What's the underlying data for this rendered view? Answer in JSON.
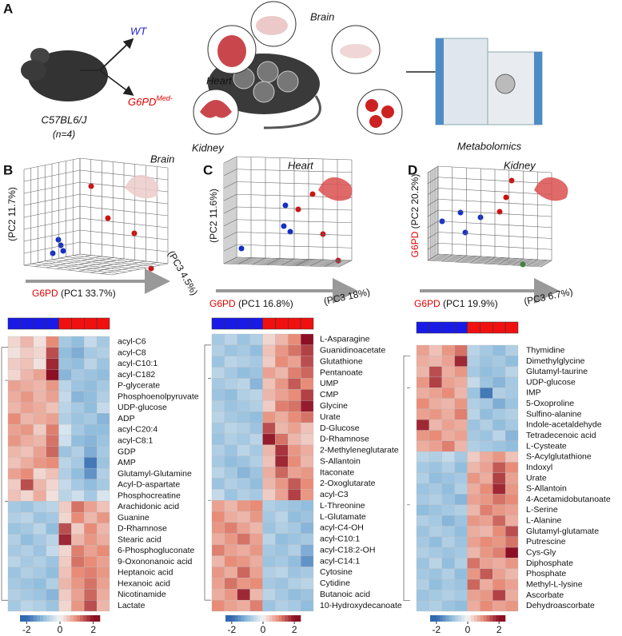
{
  "panel_a": {
    "label": "A",
    "wt": "WT",
    "g6pd": "G6PD",
    "g6pd_sup": "Med-",
    "strain": "C57BL6/J",
    "n": "(n=4)",
    "organs": [
      "Brain",
      "Heart",
      "Kidney"
    ],
    "method": "Metabolomics"
  },
  "pca": [
    {
      "label": "B",
      "organ": "Brain",
      "y_label": "(PC2 11.7%)",
      "x_prefix": "G6PD",
      "x_label": "(PC1 33.7%)",
      "z_label": "(PC3 4.5%)"
    },
    {
      "label": "C",
      "organ": "Heart",
      "y_label": "(PC2 11.6%)",
      "x_prefix": "G6PD",
      "x_label": "(PC1 16.8%)",
      "z_label": "(PC3 18%)"
    },
    {
      "label": "D",
      "organ": "Kidney",
      "y_prefix": "G6PD",
      "y_label": "(PC2 20.2%)",
      "x_prefix": "G6PD",
      "x_label": "(PC1 19.9%)",
      "z_label": "(PC3 6.7%)"
    }
  ],
  "heatmaps": [
    {
      "clim": [
        -2.4,
        2.4
      ],
      "colorbar_ticks": [
        -2,
        0,
        2
      ],
      "rows": [
        "acyl-C6",
        "acyl-C8",
        "acyl-C10:1",
        "acyl-C182",
        "P-glycerate",
        "Phosphoenolpyruvate",
        "UDP-glucose",
        "ADP",
        "acyl-C20:4",
        "acyl-C8:1",
        "GDP",
        "AMP",
        "Glutamyl-Glutamine",
        "Acyl-D-aspartate",
        "Phosphocreatine",
        "Arachidonic acid",
        "Guanine",
        "D-Rhamnose",
        "Stearic acid",
        "6-Phosphogluconate",
        "9-Oxononanoic acid",
        "Heptanoic acid",
        "Hexanoic acid",
        "Nicotinamide",
        "Lactate"
      ],
      "values": [
        [
          0.3,
          0.6,
          0.2,
          1.0,
          -0.8,
          -1.0,
          -0.5,
          -0.8
        ],
        [
          0.2,
          0.4,
          0.3,
          1.5,
          -1.0,
          -1.2,
          -0.8,
          -0.7
        ],
        [
          0.4,
          0.5,
          0.2,
          1.8,
          -0.9,
          -1.0,
          -0.6,
          -0.9
        ],
        [
          0.3,
          0.6,
          0.8,
          2.0,
          -1.1,
          -0.8,
          -0.9,
          -1.0
        ],
        [
          0.8,
          0.7,
          0.6,
          0.9,
          -0.6,
          -0.9,
          -1.0,
          -0.8
        ],
        [
          0.7,
          0.9,
          0.6,
          0.8,
          -0.5,
          -1.1,
          -1.0,
          -0.7
        ],
        [
          0.6,
          0.8,
          0.7,
          0.5,
          -0.6,
          -0.8,
          -1.0,
          -0.5
        ],
        [
          1.0,
          0.6,
          0.7,
          0.8,
          -0.7,
          -0.9,
          -0.8,
          -1.1
        ],
        [
          0.8,
          0.9,
          0.4,
          1.1,
          -0.3,
          -0.8,
          -1.0,
          -1.0
        ],
        [
          0.9,
          0.7,
          0.6,
          1.2,
          -0.4,
          -1.0,
          -1.1,
          -0.9
        ],
        [
          0.6,
          0.5,
          0.8,
          1.3,
          -0.9,
          -0.7,
          -1.2,
          -0.8
        ],
        [
          0.5,
          0.7,
          0.9,
          1.0,
          -0.6,
          -0.8,
          -1.8,
          -0.9
        ],
        [
          0.8,
          1.0,
          0.3,
          0.5,
          -0.7,
          -1.0,
          -1.5,
          -0.7
        ],
        [
          0.4,
          1.5,
          0.6,
          0.3,
          -0.5,
          -0.8,
          -1.0,
          -0.8
        ],
        [
          0.5,
          0.3,
          0.7,
          0.2,
          -0.6,
          -0.4,
          -0.8,
          -0.3
        ],
        [
          -0.8,
          -0.9,
          -0.7,
          -0.6,
          0.4,
          1.2,
          0.8,
          0.5
        ],
        [
          -0.7,
          -0.6,
          -0.9,
          -0.8,
          0.3,
          1.0,
          0.6,
          0.9
        ],
        [
          -0.9,
          -0.8,
          -0.6,
          -1.0,
          1.5,
          0.4,
          1.0,
          0.6
        ],
        [
          -0.7,
          -1.0,
          -0.8,
          -0.6,
          1.8,
          0.6,
          0.9,
          0.7
        ],
        [
          -0.8,
          -0.7,
          -0.9,
          -0.5,
          0.3,
          1.1,
          0.8,
          1.0
        ],
        [
          -0.6,
          -0.8,
          -0.7,
          -0.9,
          0.4,
          1.2,
          1.0,
          0.8
        ],
        [
          -0.9,
          -0.7,
          -0.8,
          -1.0,
          0.5,
          1.0,
          1.1,
          0.9
        ],
        [
          -0.8,
          -0.9,
          -1.0,
          -0.7,
          0.6,
          0.9,
          1.2,
          0.8
        ],
        [
          -0.7,
          -0.8,
          -0.9,
          -1.1,
          0.4,
          0.8,
          1.3,
          0.7
        ],
        [
          -0.8,
          -0.6,
          -0.7,
          -0.9,
          0.3,
          0.9,
          1.5,
          0.6
        ]
      ]
    },
    {
      "clim": [
        -2.4,
        2.4
      ],
      "colorbar_ticks": [
        -2,
        0,
        2
      ],
      "rows": [
        "L-Asparagine",
        "Guanidinoacetate",
        "Glutathione",
        "Pentanoate",
        "UMP",
        "CMP",
        "Glycine",
        "Urate",
        "D-Glucose",
        "D-Rhamnose",
        "2-Methyleneglutarate",
        "S-Allantoin",
        "Itaconate",
        "2-Oxoglutarate",
        "acyl-C3",
        "L-Threonine",
        "L-Glutamate",
        "acyl-C4-OH",
        "acyl-C10:1",
        "acyl-C18:2-OH",
        "acyl-C14:1",
        "Cytosine",
        "Cytidine",
        "Butanoic acid",
        "10-Hydroxydecanoate"
      ],
      "values": [
        [
          -0.8,
          -0.6,
          -0.9,
          -0.7,
          0.3,
          0.6,
          1.0,
          2.0
        ],
        [
          -0.7,
          -0.9,
          -0.8,
          -1.0,
          0.5,
          0.9,
          1.2,
          1.6
        ],
        [
          -0.9,
          -0.6,
          -0.7,
          -0.8,
          0.4,
          1.0,
          0.8,
          1.5
        ],
        [
          -0.6,
          -0.8,
          -1.0,
          -0.9,
          0.8,
          0.6,
          1.1,
          1.3
        ],
        [
          -0.8,
          -0.7,
          -0.6,
          -1.1,
          0.5,
          0.9,
          1.4,
          1.0
        ],
        [
          -0.9,
          -1.0,
          -0.7,
          -0.6,
          0.6,
          0.8,
          1.0,
          1.6
        ],
        [
          -0.7,
          -0.9,
          -0.8,
          -0.7,
          0.4,
          1.1,
          1.2,
          1.9
        ],
        [
          -0.6,
          -0.8,
          -0.9,
          -1.0,
          0.9,
          0.7,
          1.0,
          1.2
        ],
        [
          -0.8,
          -0.6,
          -0.7,
          -0.9,
          1.5,
          0.6,
          0.8,
          0.5
        ],
        [
          -0.9,
          -0.7,
          -0.8,
          -0.6,
          1.9,
          1.2,
          0.6,
          0.4
        ],
        [
          -0.7,
          -0.9,
          -0.6,
          -0.8,
          0.6,
          1.7,
          0.9,
          0.7
        ],
        [
          -0.8,
          -1.0,
          -0.9,
          -0.7,
          0.5,
          1.8,
          1.0,
          0.6
        ],
        [
          -0.6,
          -0.8,
          -1.1,
          -0.9,
          0.7,
          1.3,
          0.8,
          0.9
        ],
        [
          -0.9,
          -0.7,
          -0.8,
          -1.0,
          0.6,
          0.9,
          1.4,
          1.0
        ],
        [
          -0.5,
          -0.9,
          -0.7,
          -0.8,
          0.4,
          0.8,
          1.6,
          0.9
        ],
        [
          0.8,
          0.6,
          0.9,
          1.0,
          -0.7,
          -0.8,
          -0.9,
          -1.0
        ],
        [
          1.0,
          0.7,
          0.6,
          0.9,
          -0.8,
          -0.6,
          -1.0,
          -0.9
        ],
        [
          0.9,
          1.1,
          0.8,
          0.6,
          -0.9,
          -0.7,
          -0.8,
          -1.1
        ],
        [
          0.7,
          0.9,
          1.2,
          0.8,
          -0.6,
          -1.0,
          -0.9,
          -0.8
        ],
        [
          1.1,
          0.8,
          0.7,
          0.9,
          -0.8,
          -0.9,
          -0.7,
          -1.2
        ],
        [
          0.6,
          1.0,
          0.9,
          0.7,
          -0.9,
          -0.8,
          -1.0,
          -1.5
        ],
        [
          0.9,
          0.7,
          1.3,
          0.8,
          -0.7,
          -0.6,
          -0.9,
          -0.8
        ],
        [
          0.8,
          1.2,
          0.9,
          1.0,
          -0.8,
          -0.9,
          -0.7,
          -0.6
        ],
        [
          0.7,
          0.9,
          1.8,
          0.6,
          -0.6,
          -0.8,
          -1.0,
          -0.9
        ],
        [
          1.0,
          0.8,
          0.7,
          1.1,
          -0.9,
          -0.7,
          -0.8,
          -1.0
        ]
      ]
    },
    {
      "clim": [
        -2.4,
        2.4
      ],
      "colorbar_ticks": [
        -2,
        0,
        2
      ],
      "rows": [
        "Thymidine",
        "Dimethylglycine",
        "Glutamyl-taurine",
        "UDP-glucose",
        "IMP",
        "5-Oxoproline",
        "Sulfino-alanine",
        "Indole-acetaldehyde",
        "Tetradecenoic acid",
        "L-Cysteate",
        "S-Acylglutathione",
        "Indoxyl",
        "Urate",
        "S-Allantoin",
        "4-Acetamidobutanoate",
        "L-Serine",
        "L-Alanine",
        "Glutamyl-glutamate",
        "Putrescine",
        "Cys-Gly",
        "Diphosphate",
        "Phosphate",
        "Methyl-L-lysine",
        "Ascorbate",
        "Dehydroascorbate"
      ],
      "values": [
        [
          0.8,
          0.5,
          0.9,
          1.2,
          -0.6,
          -0.8,
          -1.0,
          -0.7
        ],
        [
          0.7,
          0.6,
          0.8,
          1.8,
          -0.7,
          -0.9,
          -0.8,
          -1.0
        ],
        [
          0.6,
          1.5,
          0.7,
          0.9,
          -0.8,
          -1.0,
          -0.9,
          -0.6
        ],
        [
          0.9,
          1.6,
          0.8,
          0.7,
          -0.5,
          -0.9,
          -1.1,
          -0.8
        ],
        [
          0.7,
          0.8,
          1.0,
          0.6,
          -0.9,
          -1.8,
          -0.7,
          -0.8
        ],
        [
          1.0,
          0.7,
          0.6,
          0.9,
          -0.7,
          -0.8,
          -1.2,
          -0.9
        ],
        [
          0.8,
          0.9,
          0.7,
          1.1,
          -0.6,
          -1.0,
          -0.8,
          -0.7
        ],
        [
          1.8,
          0.6,
          0.8,
          0.7,
          -0.9,
          -0.7,
          -1.0,
          -0.8
        ],
        [
          0.9,
          1.0,
          0.7,
          0.8,
          -0.8,
          -0.9,
          -0.6,
          -1.1
        ],
        [
          0.7,
          0.8,
          1.1,
          0.6,
          -0.7,
          -0.8,
          -0.9,
          -1.0
        ],
        [
          -0.6,
          -0.7,
          -0.5,
          -0.8,
          0.4,
          0.7,
          0.9,
          0.5
        ],
        [
          -0.8,
          -0.9,
          -0.7,
          -1.0,
          0.6,
          0.8,
          1.4,
          1.0
        ],
        [
          -0.7,
          -1.0,
          -0.9,
          -0.8,
          0.9,
          0.7,
          1.6,
          0.8
        ],
        [
          -0.9,
          -0.8,
          -1.0,
          -0.7,
          0.7,
          1.0,
          1.8,
          0.9
        ],
        [
          -0.8,
          -0.7,
          -0.9,
          -1.1,
          0.8,
          0.9,
          1.2,
          1.0
        ],
        [
          -1.0,
          -0.9,
          -0.8,
          -0.7,
          0.6,
          1.1,
          0.9,
          0.8
        ],
        [
          -0.7,
          -0.8,
          -1.1,
          -0.9,
          0.9,
          0.8,
          1.3,
          0.7
        ],
        [
          -0.9,
          -0.7,
          -0.8,
          -1.0,
          0.7,
          0.6,
          1.0,
          1.5
        ],
        [
          -0.8,
          -1.0,
          -0.7,
          -0.9,
          0.8,
          1.0,
          0.9,
          1.2
        ],
        [
          -0.7,
          -0.8,
          -0.9,
          -0.8,
          0.6,
          0.9,
          1.1,
          2.0
        ],
        [
          -0.9,
          -0.6,
          -1.0,
          -0.7,
          1.2,
          0.8,
          0.7,
          0.9
        ],
        [
          -0.8,
          -0.9,
          -0.7,
          -1.0,
          0.9,
          1.4,
          0.8,
          0.6
        ],
        [
          -0.7,
          -1.0,
          -0.8,
          -0.9,
          1.3,
          0.7,
          1.0,
          0.8
        ],
        [
          -0.9,
          -0.8,
          -0.7,
          -0.8,
          0.8,
          0.9,
          1.6,
          0.7
        ],
        [
          -0.8,
          -0.7,
          -0.9,
          -1.0,
          0.7,
          1.0,
          0.8,
          0.9
        ]
      ]
    }
  ]
}
